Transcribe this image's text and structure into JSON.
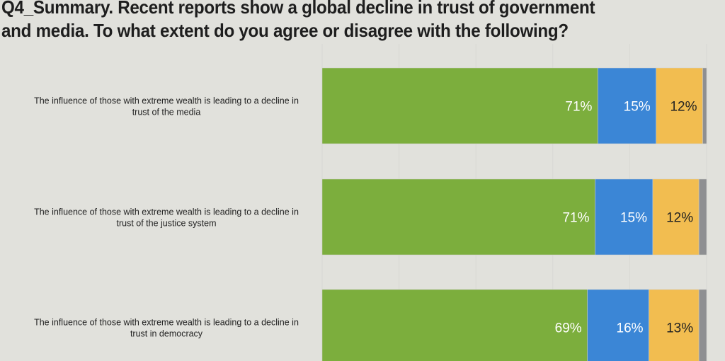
{
  "chart_data": {
    "type": "bar",
    "orientation": "horizontal",
    "stacked": true,
    "title": "Q4_Summary. Recent reports show a global decline in trust of government and media. To what extent do you agree or disagree with the following?",
    "title_lines": [
      "Q4_Summary. Recent reports show a global decline in trust of government",
      "and media. To what extent do you agree or disagree with the following?"
    ],
    "categories": [
      [
        "The influence of those with extreme wealth is leading to a decline in",
        "trust of the media"
      ],
      [
        "The influence of those with extreme wealth is leading to a decline in",
        "trust of the justice system"
      ],
      [
        "The influence of those with extreme wealth is leading to a decline in",
        "trust in democracy"
      ]
    ],
    "series": [
      {
        "color": "#7cae3d",
        "label_color": "#ffffff",
        "values": [
          71,
          71,
          69
        ],
        "labels": [
          "71%",
          "71%",
          "69%"
        ]
      },
      {
        "color": "#3b86d6",
        "label_color": "#ffffff",
        "values": [
          15,
          15,
          16
        ],
        "labels": [
          "15%",
          "15%",
          "16%"
        ]
      },
      {
        "color": "#f2bd50",
        "label_color": "#222222",
        "values": [
          12,
          12,
          13
        ],
        "labels": [
          "12%",
          "12%",
          "13%"
        ]
      },
      {
        "color": "#8e8f92",
        "values": [
          1,
          2,
          2
        ]
      }
    ],
    "xlim": [
      0,
      100
    ],
    "grid": true,
    "background": "#e1e1dc"
  }
}
